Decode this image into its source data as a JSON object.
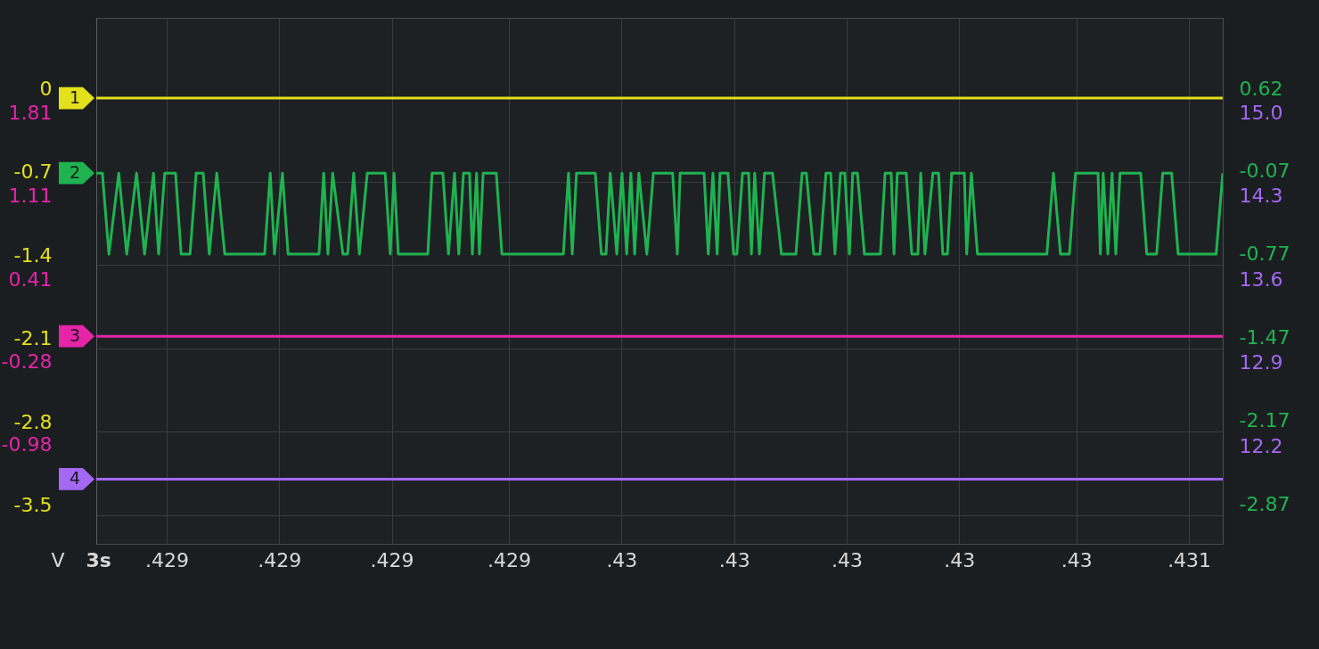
{
  "chart_data": [
    {
      "type": "line",
      "xlabel": "3s",
      "ylabel": "V",
      "grid": true,
      "xlim": [
        0.4284,
        0.430802
      ],
      "xticks": [
        {
          "value": 0.42855,
          "label": ".429"
        },
        {
          "value": 0.42879,
          "label": ".429"
        },
        {
          "value": 0.42903,
          "label": ".429"
        },
        {
          "value": 0.42928,
          "label": ".429"
        },
        {
          "value": 0.42952,
          "label": ".43"
        },
        {
          "value": 0.42976,
          "label": ".43"
        },
        {
          "value": 0.43,
          "label": ".43"
        },
        {
          "value": 0.43024,
          "label": ".43"
        },
        {
          "value": 0.43049,
          "label": ".43"
        },
        {
          "value": 0.43073,
          "label": ".431"
        }
      ],
      "ylim": [
        -3.743,
        0.674
      ],
      "yticks": [
        0,
        -0.7,
        -1.4,
        -2.1,
        -2.8,
        -3.5
      ],
      "y2lim": [
        -3.123,
        1.294
      ],
      "y2ticks": [
        0.62,
        -0.07,
        -0.77,
        -1.47,
        -2.17,
        -2.87
      ],
      "series": [
        {
          "name": "1",
          "color": "#e3e01c",
          "x": [
            0.4284,
            0.430802
          ],
          "values": [
            0,
            0
          ]
        },
        {
          "name": "2",
          "color": "#1fb350",
          "axis": "y2",
          "x": [
            0.4284,
            0.428413,
            0.428427,
            0.428448,
            0.428465,
            0.428486,
            0.428503,
            0.428522,
            0.428533,
            0.428546,
            0.428569,
            0.428581,
            0.4286,
            0.428613,
            0.428628,
            0.428641,
            0.428657,
            0.428674,
            0.428759,
            0.428771,
            0.42878,
            0.428797,
            0.428809,
            0.428875,
            0.428885,
            0.428894,
            0.428904,
            0.428926,
            0.428936,
            0.428949,
            0.428961,
            0.428978,
            0.429016,
            0.429027,
            0.429035,
            0.429044,
            0.429107,
            0.429116,
            0.429139,
            0.429151,
            0.429164,
            0.429173,
            0.429183,
            0.429196,
            0.429202,
            0.429211,
            0.429217,
            0.429225,
            0.429253,
            0.429265,
            0.429396,
            0.429407,
            0.429415,
            0.429424,
            0.429464,
            0.429477,
            0.429487,
            0.429496,
            0.42951,
            0.429521,
            0.429531,
            0.42954,
            0.429548,
            0.429557,
            0.429574,
            0.429588,
            0.429629,
            0.429639,
            0.429645,
            0.429696,
            0.429705,
            0.429715,
            0.429724,
            0.42973,
            0.429747,
            0.429759,
            0.429766,
            0.429778,
            0.429791,
            0.429797,
            0.429804,
            0.429814,
            0.429825,
            0.429842,
            0.429861,
            0.429892,
            0.429905,
            0.429914,
            0.42993,
            0.429943,
            0.429956,
            0.429966,
            0.429975,
            0.429987,
            0.429996,
            0.430006,
            0.430013,
            0.430023,
            0.430038,
            0.430072,
            0.430082,
            0.430095,
            0.430101,
            0.430108,
            0.430127,
            0.430139,
            0.430152,
            0.430158,
            0.430167,
            0.430184,
            0.430196,
            0.430205,
            0.430215,
            0.430224,
            0.430251,
            0.430256,
            0.430266,
            0.430279,
            0.430427,
            0.430441,
            0.430456,
            0.430475,
            0.430488,
            0.430536,
            0.430541,
            0.430547,
            0.430557,
            0.430566,
            0.430574,
            0.430583,
            0.430627,
            0.43064,
            0.430661,
            0.430674,
            0.430693,
            0.430707,
            0.430788,
            0.430802
          ],
          "values": [
            -0.01,
            -0.01,
            -0.69,
            -0.01,
            -0.69,
            -0.01,
            -0.69,
            -0.01,
            -0.69,
            -0.01,
            -0.01,
            -0.69,
            -0.69,
            -0.01,
            -0.01,
            -0.69,
            -0.01,
            -0.69,
            -0.69,
            -0.01,
            -0.69,
            -0.01,
            -0.69,
            -0.69,
            -0.01,
            -0.69,
            -0.01,
            -0.69,
            -0.69,
            -0.01,
            -0.69,
            -0.01,
            -0.01,
            -0.69,
            -0.01,
            -0.69,
            -0.69,
            -0.01,
            -0.01,
            -0.69,
            -0.01,
            -0.69,
            -0.01,
            -0.01,
            -0.69,
            -0.01,
            -0.69,
            -0.01,
            -0.01,
            -0.69,
            -0.69,
            -0.01,
            -0.69,
            -0.01,
            -0.01,
            -0.69,
            -0.69,
            -0.01,
            -0.69,
            -0.01,
            -0.69,
            -0.01,
            -0.69,
            -0.01,
            -0.69,
            -0.01,
            -0.01,
            -0.69,
            -0.01,
            -0.01,
            -0.69,
            -0.01,
            -0.69,
            -0.01,
            -0.01,
            -0.69,
            -0.69,
            -0.01,
            -0.01,
            -0.69,
            -0.01,
            -0.69,
            -0.01,
            -0.01,
            -0.69,
            -0.69,
            -0.01,
            -0.01,
            -0.69,
            -0.69,
            -0.01,
            -0.01,
            -0.69,
            -0.01,
            -0.01,
            -0.69,
            -0.01,
            -0.01,
            -0.69,
            -0.69,
            -0.01,
            -0.01,
            -0.69,
            -0.01,
            -0.01,
            -0.69,
            -0.69,
            -0.01,
            -0.69,
            -0.01,
            -0.01,
            -0.69,
            -0.69,
            -0.01,
            -0.01,
            -0.69,
            -0.01,
            -0.69,
            -0.69,
            -0.01,
            -0.69,
            -0.69,
            -0.01,
            -0.01,
            -0.69,
            -0.01,
            -0.69,
            -0.01,
            -0.69,
            -0.01,
            -0.01,
            -0.69,
            -0.69,
            -0.01,
            -0.01,
            -0.69,
            -0.69,
            -0.01
          ]
        }
      ]
    },
    {
      "type": "line",
      "tick_labels": "y",
      "xlim": [
        0.4284,
        0.430802
      ],
      "ylim": [
        -1.933,
        2.484
      ],
      "yticks": [
        1.81,
        1.11,
        0.41,
        -0.28,
        -0.98
      ],
      "y2lim": [
        11.257,
        15.674
      ],
      "y2ticks": [
        {
          "value": 15,
          "label": "15.0"
        },
        14.3,
        13.6,
        12.9,
        12.2
      ],
      "series": [
        {
          "name": "3",
          "color": "#e524a8",
          "x": [
            0.4284,
            0.430802
          ],
          "values": [
            -0.19,
            -0.19
          ]
        },
        {
          "name": "4",
          "color": "#a468f2",
          "axis": "y2",
          "x": [
            0.4284,
            0.430802
          ],
          "values": [
            11.8,
            11.8
          ]
        }
      ]
    }
  ]
}
